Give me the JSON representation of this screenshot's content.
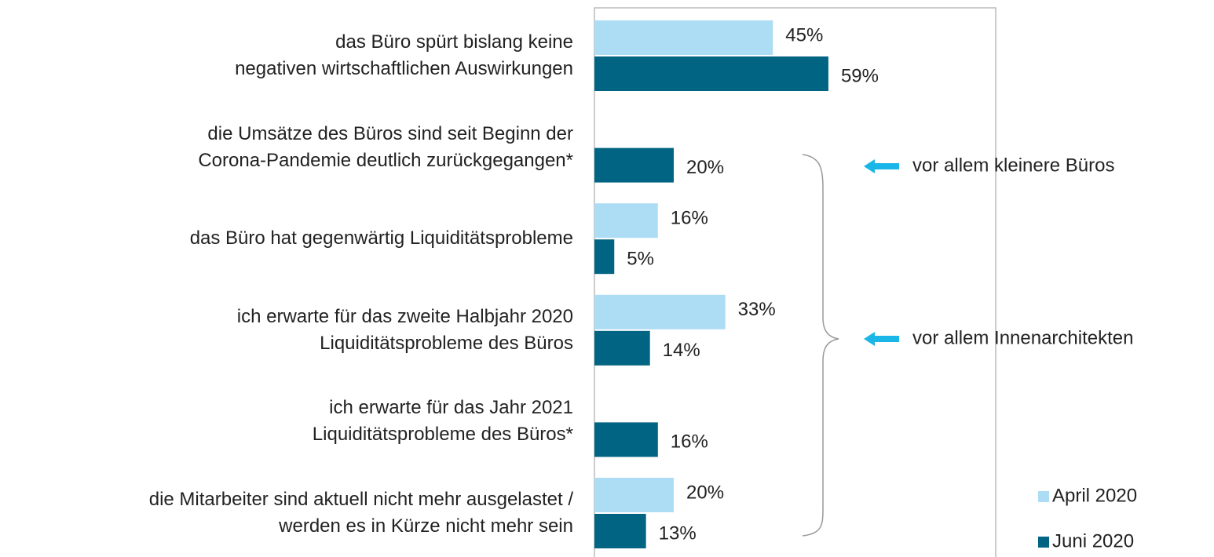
{
  "chart_data": {
    "type": "bar",
    "orientation": "horizontal",
    "categories": [
      "das Büro spürt bislang keine\nnegativen wirtschaftlichen Auswirkungen",
      "die Umsätze des Büros sind seit Beginn der\nCorona-Pandemie deutlich zurückgegangen*",
      "das Büro hat gegenwärtig Liquiditätsprobleme",
      "ich erwarte für das zweite Halbjahr 2020\nLiquiditätsprobleme des Büros",
      "ich erwarte für das Jahr 2021\nLiquiditätsprobleme des Büros*",
      "die Mitarbeiter sind aktuell nicht mehr ausgelastet /\nwerden es in Kürze nicht mehr sein"
    ],
    "series": [
      {
        "name": "April 2020",
        "color": "#addcf5",
        "values": [
          45,
          null,
          16,
          33,
          null,
          20
        ],
        "value_labels": [
          "45%",
          null,
          "16%",
          "33%",
          null,
          "20%"
        ]
      },
      {
        "name": "Juni 2020",
        "color": "#006482",
        "values": [
          59,
          20,
          5,
          14,
          16,
          13
        ],
        "value_labels": [
          "59%",
          "20%",
          "5%",
          "14%",
          "16%",
          "13%"
        ]
      }
    ],
    "xlim": [
      0,
      100
    ],
    "annotations": [
      "vor allem kleinere Büros",
      "vor allem Innenarchitekten"
    ],
    "legend": "bottom-right"
  }
}
